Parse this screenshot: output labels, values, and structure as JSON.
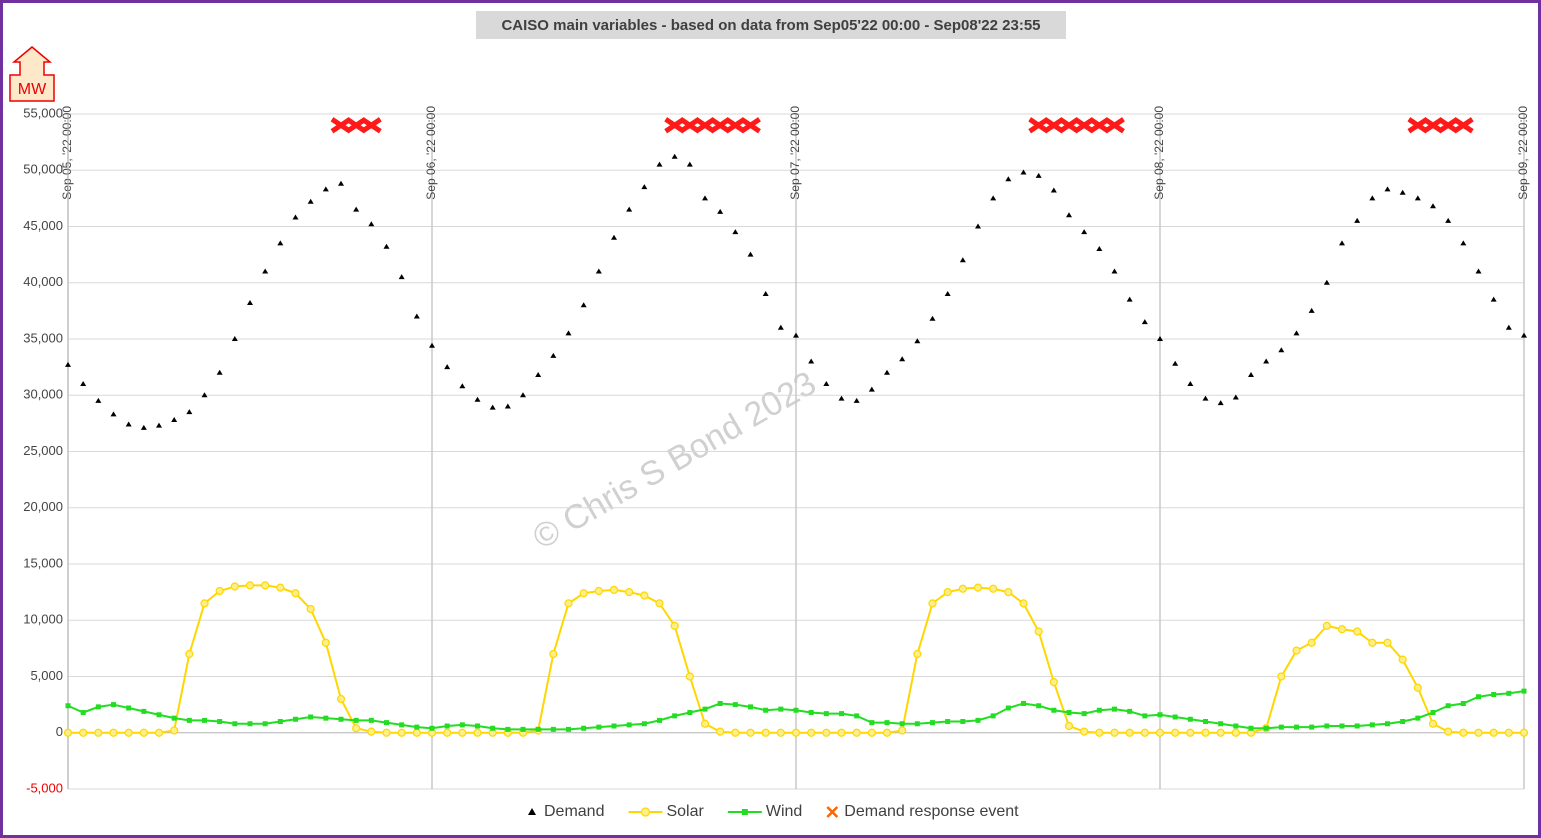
{
  "chart_data": {
    "type": "line",
    "title": "CAISO main variables - based on data from Sep05'22 00:00 - Sep08'22 23:55",
    "y_label": "MW",
    "annotation": "© Chris S Bond  2023",
    "x": [
      "2022-09-05T00:00",
      "2022-09-05T01:00",
      "2022-09-05T02:00",
      "2022-09-05T03:00",
      "2022-09-05T04:00",
      "2022-09-05T05:00",
      "2022-09-05T06:00",
      "2022-09-05T07:00",
      "2022-09-05T08:00",
      "2022-09-05T09:00",
      "2022-09-05T10:00",
      "2022-09-05T11:00",
      "2022-09-05T12:00",
      "2022-09-05T13:00",
      "2022-09-05T14:00",
      "2022-09-05T15:00",
      "2022-09-05T16:00",
      "2022-09-05T17:00",
      "2022-09-05T18:00",
      "2022-09-05T19:00",
      "2022-09-05T20:00",
      "2022-09-05T21:00",
      "2022-09-05T22:00",
      "2022-09-05T23:00",
      "2022-09-06T00:00",
      "2022-09-06T01:00",
      "2022-09-06T02:00",
      "2022-09-06T03:00",
      "2022-09-06T04:00",
      "2022-09-06T05:00",
      "2022-09-06T06:00",
      "2022-09-06T07:00",
      "2022-09-06T08:00",
      "2022-09-06T09:00",
      "2022-09-06T10:00",
      "2022-09-06T11:00",
      "2022-09-06T12:00",
      "2022-09-06T13:00",
      "2022-09-06T14:00",
      "2022-09-06T15:00",
      "2022-09-06T16:00",
      "2022-09-06T17:00",
      "2022-09-06T18:00",
      "2022-09-06T19:00",
      "2022-09-06T20:00",
      "2022-09-06T21:00",
      "2022-09-06T22:00",
      "2022-09-06T23:00",
      "2022-09-07T00:00",
      "2022-09-07T01:00",
      "2022-09-07T02:00",
      "2022-09-07T03:00",
      "2022-09-07T04:00",
      "2022-09-07T05:00",
      "2022-09-07T06:00",
      "2022-09-07T07:00",
      "2022-09-07T08:00",
      "2022-09-07T09:00",
      "2022-09-07T10:00",
      "2022-09-07T11:00",
      "2022-09-07T12:00",
      "2022-09-07T13:00",
      "2022-09-07T14:00",
      "2022-09-07T15:00",
      "2022-09-07T16:00",
      "2022-09-07T17:00",
      "2022-09-07T18:00",
      "2022-09-07T19:00",
      "2022-09-07T20:00",
      "2022-09-07T21:00",
      "2022-09-07T22:00",
      "2022-09-07T23:00",
      "2022-09-08T00:00",
      "2022-09-08T01:00",
      "2022-09-08T02:00",
      "2022-09-08T03:00",
      "2022-09-08T04:00",
      "2022-09-08T05:00",
      "2022-09-08T06:00",
      "2022-09-08T07:00",
      "2022-09-08T08:00",
      "2022-09-08T09:00",
      "2022-09-08T10:00",
      "2022-09-08T11:00",
      "2022-09-08T12:00",
      "2022-09-08T13:00",
      "2022-09-08T14:00",
      "2022-09-08T15:00",
      "2022-09-08T16:00",
      "2022-09-08T17:00",
      "2022-09-08T18:00",
      "2022-09-08T19:00",
      "2022-09-08T20:00",
      "2022-09-08T21:00",
      "2022-09-08T22:00",
      "2022-09-08T23:00",
      "2022-09-09T00:00"
    ],
    "series": [
      {
        "name": "Demand",
        "color": "#000000",
        "marker": "triangle",
        "line": false,
        "values": [
          32700,
          31000,
          29500,
          28300,
          27400,
          27100,
          27300,
          27800,
          28500,
          30000,
          32000,
          35000,
          38200,
          41000,
          43500,
          45800,
          47200,
          48300,
          48800,
          46500,
          45200,
          43200,
          40500,
          37000,
          34400,
          32500,
          30800,
          29600,
          28900,
          29000,
          30000,
          31800,
          33500,
          35500,
          38000,
          41000,
          44000,
          46500,
          48500,
          50500,
          51200,
          50500,
          47500,
          46300,
          44500,
          42500,
          39000,
          36000,
          35300,
          33000,
          31000,
          29700,
          29500,
          30500,
          32000,
          33200,
          34800,
          36800,
          39000,
          42000,
          45000,
          47500,
          49200,
          49800,
          49500,
          48200,
          46000,
          44500,
          43000,
          41000,
          38500,
          36500,
          35000,
          32800,
          31000,
          29700,
          29300,
          29800,
          31800,
          33000,
          34000,
          35500,
          37500,
          40000,
          43500,
          45500,
          47500,
          48300,
          48000,
          47500,
          46800,
          45500,
          43500,
          41000,
          38500,
          36000,
          35300
        ]
      },
      {
        "name": "Solar",
        "color": "#ffd700",
        "marker": "circle",
        "line": true,
        "values": [
          0,
          0,
          0,
          0,
          0,
          0,
          0,
          200,
          7000,
          11500,
          12600,
          13000,
          13100,
          13100,
          12900,
          12400,
          11000,
          8000,
          3000,
          400,
          100,
          0,
          0,
          0,
          0,
          0,
          0,
          0,
          0,
          0,
          0,
          200,
          7000,
          11500,
          12400,
          12600,
          12700,
          12500,
          12200,
          11500,
          9500,
          5000,
          800,
          100,
          0,
          0,
          0,
          0,
          0,
          0,
          0,
          0,
          0,
          0,
          0,
          200,
          7000,
          11500,
          12500,
          12800,
          12900,
          12800,
          12500,
          11500,
          9000,
          4500,
          600,
          100,
          0,
          0,
          0,
          0,
          0,
          0,
          0,
          0,
          0,
          0,
          0,
          400,
          5000,
          7300,
          8000,
          9500,
          9200,
          9000,
          8000,
          8000,
          6500,
          4000,
          800,
          100,
          0,
          0,
          0,
          0,
          0
        ]
      },
      {
        "name": "Wind",
        "color": "#22dd22",
        "marker": "square",
        "line": true,
        "values": [
          2400,
          1800,
          2300,
          2500,
          2200,
          1900,
          1600,
          1300,
          1100,
          1100,
          1000,
          800,
          800,
          800,
          1000,
          1200,
          1400,
          1300,
          1200,
          1100,
          1100,
          900,
          700,
          500,
          400,
          600,
          700,
          600,
          400,
          300,
          300,
          300,
          300,
          300,
          400,
          500,
          600,
          700,
          800,
          1100,
          1500,
          1800,
          2100,
          2600,
          2500,
          2300,
          2000,
          2100,
          2000,
          1800,
          1700,
          1700,
          1500,
          900,
          900,
          800,
          800,
          900,
          1000,
          1000,
          1100,
          1500,
          2200,
          2600,
          2400,
          2000,
          1800,
          1700,
          2000,
          2100,
          1900,
          1500,
          1600,
          1400,
          1200,
          1000,
          800,
          600,
          400,
          400,
          500,
          500,
          500,
          600,
          600,
          600,
          700,
          800,
          1000,
          1300,
          1800,
          2400,
          2600,
          3200,
          3400,
          3500,
          3700
        ]
      },
      {
        "name": "Demand response event",
        "color": "#ff1a1a",
        "marker": "x",
        "line": false,
        "values": [
          null,
          null,
          null,
          null,
          null,
          null,
          null,
          null,
          null,
          null,
          null,
          null,
          null,
          null,
          null,
          null,
          null,
          null,
          54000,
          54000,
          54000,
          null,
          null,
          null,
          null,
          null,
          null,
          null,
          null,
          null,
          null,
          null,
          null,
          null,
          null,
          null,
          null,
          null,
          null,
          null,
          54000,
          54000,
          54000,
          54000,
          54000,
          54000,
          null,
          null,
          null,
          null,
          null,
          null,
          null,
          null,
          null,
          null,
          null,
          null,
          null,
          null,
          null,
          null,
          null,
          null,
          54000,
          54000,
          54000,
          54000,
          54000,
          54000,
          null,
          null,
          null,
          null,
          null,
          null,
          null,
          null,
          null,
          null,
          null,
          null,
          null,
          null,
          null,
          null,
          null,
          null,
          null,
          54000,
          54000,
          54000,
          54000,
          null,
          null,
          null,
          null
        ]
      }
    ],
    "xlim": [
      "2022-09-05T00:00",
      "2022-09-09T00:00"
    ],
    "xticks": [
      {
        "value": "2022-09-05T00:00",
        "label": "Sep 05, '22 00:00"
      },
      {
        "value": "2022-09-06T00:00",
        "label": "Sep 06, '22 00:00"
      },
      {
        "value": "2022-09-07T00:00",
        "label": "Sep 07, '22 00:00"
      },
      {
        "value": "2022-09-08T00:00",
        "label": "Sep 08, '22 00:00"
      },
      {
        "value": "2022-09-09T00:00",
        "label": "Sep 09, '22 00:00"
      }
    ],
    "ylim": [
      -5000,
      55000
    ],
    "yticks": [
      {
        "value": -5000,
        "label": "-5,000"
      },
      0,
      {
        "value": 5000,
        "label": "5,000"
      },
      {
        "value": 10000,
        "label": "10,000"
      },
      {
        "value": 15000,
        "label": "15,000"
      },
      {
        "value": 20000,
        "label": "20,000"
      },
      {
        "value": 25000,
        "label": "25,000"
      },
      {
        "value": 30000,
        "label": "30,000"
      },
      {
        "value": 35000,
        "label": "35,000"
      },
      {
        "value": 40000,
        "label": "40,000"
      },
      {
        "value": 45000,
        "label": "45,000"
      },
      {
        "value": 50000,
        "label": "50,000"
      },
      {
        "value": 55000,
        "label": "55,000"
      }
    ],
    "grid": true,
    "legend": "bottom"
  }
}
